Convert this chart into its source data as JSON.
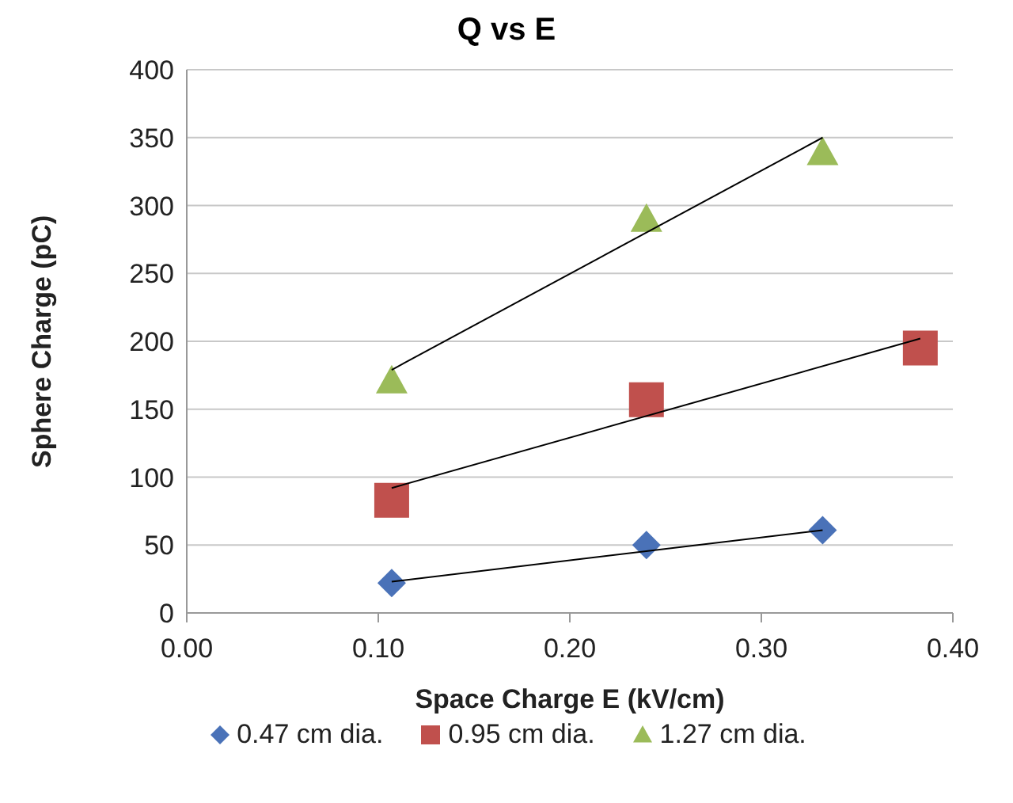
{
  "chart_data": {
    "type": "scatter",
    "title": "Q vs E",
    "xlabel": "Space Charge E (kV/cm)",
    "ylabel": "Sphere Charge (pC)",
    "xlim": [
      0,
      0.4
    ],
    "xticks": [
      {
        "value": 0,
        "label": "0.00"
      },
      {
        "value": 0.1,
        "label": "0.10"
      },
      {
        "value": 0.2,
        "label": "0.20"
      },
      {
        "value": 0.3,
        "label": "0.30"
      },
      {
        "value": 0.4,
        "label": "0.40"
      }
    ],
    "ylim": [
      0,
      400
    ],
    "yticks": [
      0,
      50,
      100,
      150,
      200,
      250,
      300,
      350,
      400
    ],
    "grid": "y",
    "legend": "bottom",
    "series": [
      {
        "name": "0.47 cm dia.",
        "color": "#4a72b8",
        "marker": "diamond",
        "x": [
          0.107,
          0.24,
          0.332
        ],
        "values": [
          22,
          50,
          61
        ]
      },
      {
        "name": "0.95 cm dia.",
        "color": "#c0504d",
        "marker": "square",
        "x": [
          0.107,
          0.24,
          0.383
        ],
        "values": [
          83,
          157,
          195
        ]
      },
      {
        "name": "1.27 cm dia.",
        "color": "#9bbb59",
        "marker": "triangle",
        "x": [
          0.107,
          0.24,
          0.332
        ],
        "values": [
          171,
          290,
          339
        ]
      },
      {
        "type": "line",
        "color": "#000000",
        "marker": "none",
        "x": [
          0.107,
          0.332
        ],
        "values": [
          23,
          61
        ]
      },
      {
        "type": "line",
        "color": "#000000",
        "marker": "none",
        "x": [
          0.107,
          0.383
        ],
        "values": [
          92,
          202
        ]
      },
      {
        "type": "line",
        "color": "#000000",
        "marker": "none",
        "x": [
          0.107,
          0.332
        ],
        "values": [
          179,
          350
        ]
      }
    ]
  }
}
